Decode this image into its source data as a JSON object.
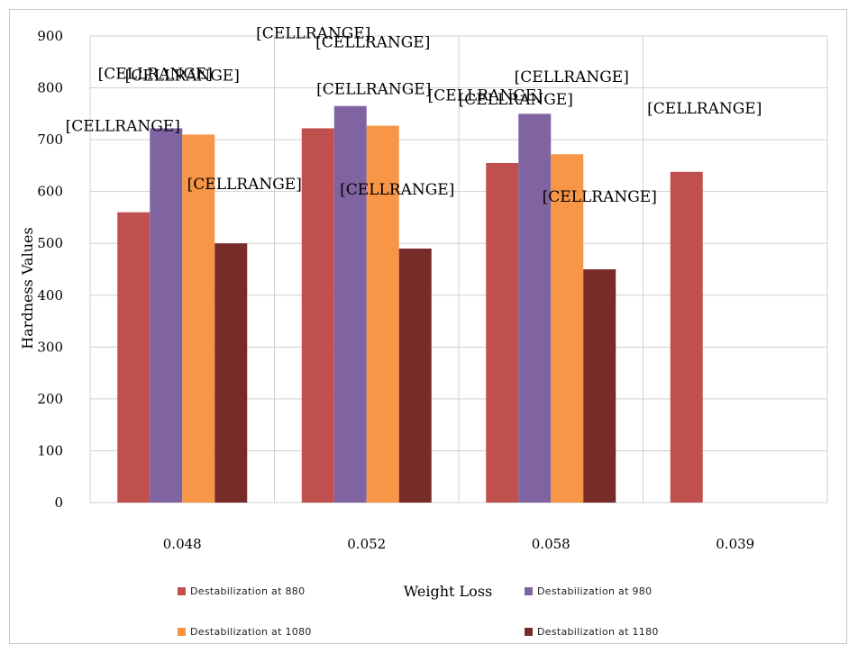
{
  "chart_data": {
    "type": "bar",
    "title": "",
    "xlabel": "Weight Loss",
    "ylabel": "Hardness Values",
    "ylim": [
      0,
      900
    ],
    "yticks": [
      0,
      100,
      200,
      300,
      400,
      500,
      600,
      700,
      800,
      900
    ],
    "categories": [
      "0.048",
      "0.052",
      "0.058",
      "0.039"
    ],
    "series": [
      {
        "name": "Destabilization at 880",
        "color": "#c0504d",
        "values": [
          560,
          722,
          655,
          638
        ]
      },
      {
        "name": "Destabilization at 980",
        "color": "#8064a2",
        "values": [
          722,
          765,
          750,
          null
        ]
      },
      {
        "name": "Destabilization at 1080",
        "color": "#f79646",
        "values": [
          710,
          727,
          672,
          null
        ]
      },
      {
        "name": "Destabilization at 1180",
        "color": "#772c2a",
        "values": [
          500,
          490,
          450,
          null
        ]
      }
    ],
    "data_label_text": "[CELLRANGE]",
    "grid": true,
    "legend_position": "bottom"
  }
}
